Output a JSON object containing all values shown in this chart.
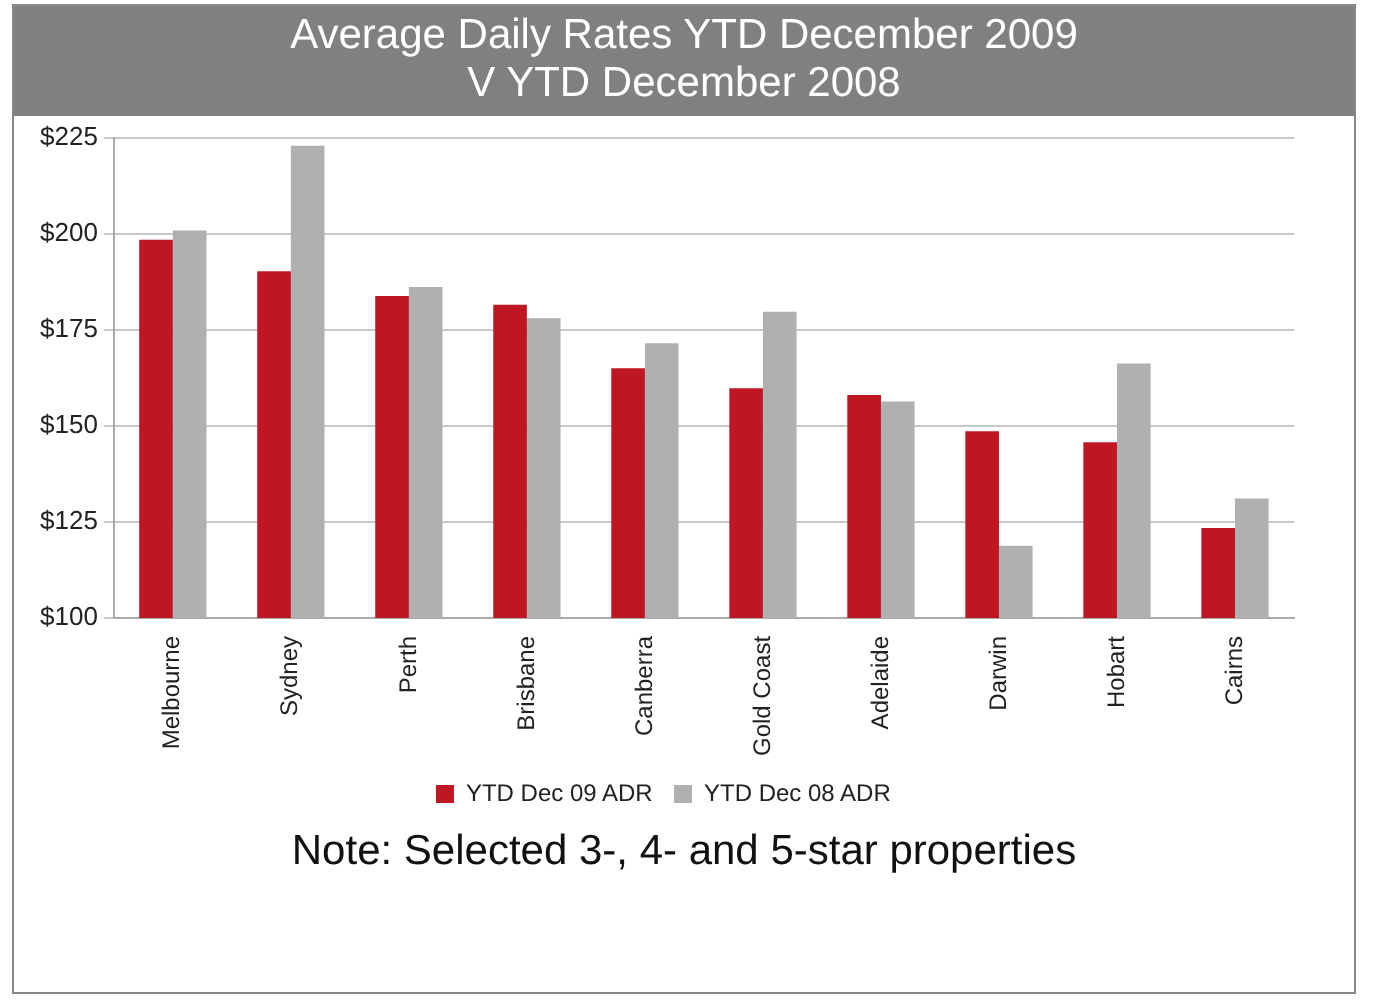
{
  "chart_data": {
    "type": "bar",
    "title": "Average Daily Rates YTD December 2009\nV YTD December 2008",
    "categories": [
      "Melbourne",
      "Sydney",
      "Perth",
      "Brisbane",
      "Canberra",
      "Gold Coast",
      "Adelaide",
      "Darwin",
      "Hobart",
      "Cairns"
    ],
    "series": [
      {
        "name": "YTD Dec 09 ADR",
        "color": "#be1622",
        "values": [
          198.4,
          190.2,
          183.8,
          181.5,
          165.0,
          159.8,
          158.0,
          148.6,
          145.7,
          123.4
        ]
      },
      {
        "name": "YTD Dec 08 ADR",
        "color": "#b0b0b0",
        "values": [
          200.8,
          222.9,
          186.1,
          178.0,
          171.5,
          179.7,
          156.3,
          118.8,
          166.2,
          131.1
        ]
      }
    ],
    "ylim": [
      100,
      225
    ],
    "yticks": [
      {
        "value": 100,
        "label": "$100"
      },
      {
        "value": 125,
        "label": "$125"
      },
      {
        "value": 150,
        "label": "$150"
      },
      {
        "value": 175,
        "label": "$175"
      },
      {
        "value": 200,
        "label": "$200"
      },
      {
        "value": 225,
        "label": "$225"
      }
    ],
    "grid": "y",
    "legend": "bottom",
    "annotations": [
      "Note: Selected 3-, 4- and 5-star properties"
    ]
  }
}
